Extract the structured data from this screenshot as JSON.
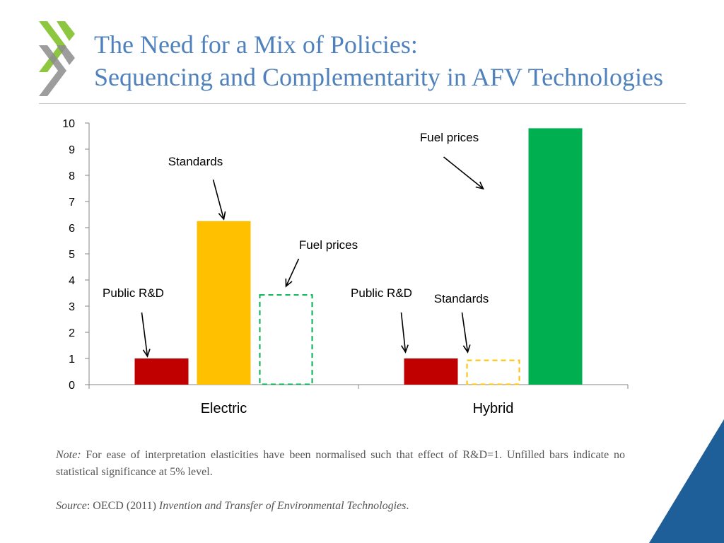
{
  "slide": {
    "title_line1": "The Need for a Mix of Policies:",
    "title_line2": "Sequencing and Complementarity in AFV Technologies",
    "note_label": "Note:",
    "note_text": " For ease of interpretation elasticities have been normalised such that effect of R&D=1. Unfilled bars indicate no statistical significance at 5% level.",
    "source_label": "Source",
    "source_text": ": OECD (2011) ",
    "source_title": "Invention and Transfer of Environmental Technologies",
    "source_end": "."
  },
  "colors": {
    "title": "#4f81bd",
    "rd": "#c00000",
    "standards": "#ffc000",
    "fuel": "#00b050",
    "accent_blue": "#1f5f99"
  },
  "chart_data": {
    "type": "bar",
    "categories": [
      "Electric",
      "Hybrid"
    ],
    "ylim": [
      0,
      10
    ],
    "yticks": [
      0,
      1,
      2,
      3,
      4,
      5,
      6,
      7,
      8,
      9,
      10
    ],
    "bars": [
      {
        "category": "Electric",
        "series": "rd",
        "label": "Public R&D",
        "value": 1.0,
        "significant": true
      },
      {
        "category": "Electric",
        "series": "standards",
        "label": "Standards",
        "value": 6.25,
        "significant": true
      },
      {
        "category": "Electric",
        "series": "fuel",
        "label": "Fuel prices",
        "value": 3.43,
        "significant": false
      },
      {
        "category": "Hybrid",
        "series": "rd",
        "label": "Public R&D",
        "value": 1.0,
        "significant": true
      },
      {
        "category": "Hybrid",
        "series": "standards",
        "label": "Standards",
        "value": 0.93,
        "significant": false
      },
      {
        "category": "Hybrid",
        "series": "fuel",
        "label": "Fuel prices",
        "value": 9.8,
        "significant": true
      }
    ]
  }
}
